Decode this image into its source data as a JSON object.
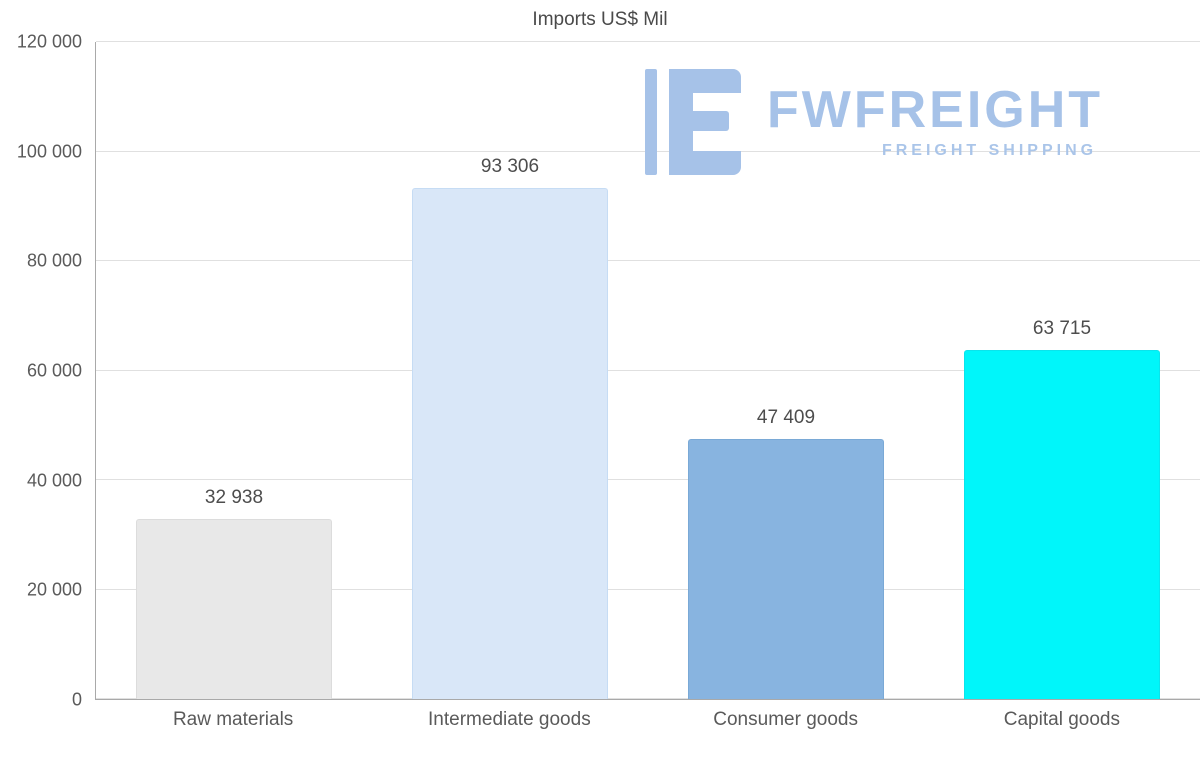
{
  "chart_data": {
    "type": "bar",
    "title": "Imports US$ Mil",
    "categories": [
      "Raw materials",
      "Intermediate goods",
      "Consumer goods",
      "Capital goods"
    ],
    "values": [
      32938,
      93306,
      47409,
      63715
    ],
    "value_labels": [
      "32 938",
      "93 306",
      "47 409",
      "63 715"
    ],
    "bar_colors": [
      "#e8e8e8",
      "#d9e7f8",
      "#88b4e0",
      "#00f6fa"
    ],
    "bar_border_colors": [
      "#dcdcdc",
      "#c6dcf4",
      "#7aa9d6",
      "#0ae4ec"
    ],
    "xlabel": "",
    "ylabel": "",
    "ylim": [
      0,
      120000
    ],
    "ytick_interval": 20000,
    "ytick_labels": [
      "0",
      "20 000",
      "40 000",
      "60 000",
      "80 000",
      "100 000",
      "120 000"
    ],
    "grid": true,
    "legend": "none"
  },
  "watermark": {
    "brand": "FWFREIGHT",
    "tagline": "FREIGHT SHIPPING",
    "color": "#a6c2e8"
  }
}
